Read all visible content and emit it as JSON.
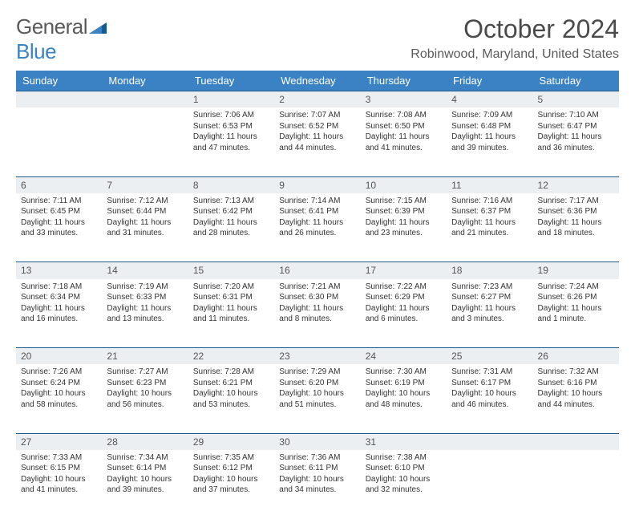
{
  "logo": {
    "text1": "General",
    "text2": "Blue"
  },
  "title": "October 2024",
  "location": "Robinwood, Maryland, United States",
  "weekdays": [
    "Sunday",
    "Monday",
    "Tuesday",
    "Wednesday",
    "Thursday",
    "Friday",
    "Saturday"
  ],
  "colors": {
    "header_bg": "#3b82c4",
    "row_border": "#1a5a8a",
    "daynum_bg": "#eceff1",
    "logo_blue": "#3b82c4"
  },
  "weeks": [
    [
      {
        "day": "",
        "sunrise": "",
        "sunset": "",
        "daylight": ""
      },
      {
        "day": "",
        "sunrise": "",
        "sunset": "",
        "daylight": ""
      },
      {
        "day": "1",
        "sunrise": "Sunrise: 7:06 AM",
        "sunset": "Sunset: 6:53 PM",
        "daylight": "Daylight: 11 hours and 47 minutes."
      },
      {
        "day": "2",
        "sunrise": "Sunrise: 7:07 AM",
        "sunset": "Sunset: 6:52 PM",
        "daylight": "Daylight: 11 hours and 44 minutes."
      },
      {
        "day": "3",
        "sunrise": "Sunrise: 7:08 AM",
        "sunset": "Sunset: 6:50 PM",
        "daylight": "Daylight: 11 hours and 41 minutes."
      },
      {
        "day": "4",
        "sunrise": "Sunrise: 7:09 AM",
        "sunset": "Sunset: 6:48 PM",
        "daylight": "Daylight: 11 hours and 39 minutes."
      },
      {
        "day": "5",
        "sunrise": "Sunrise: 7:10 AM",
        "sunset": "Sunset: 6:47 PM",
        "daylight": "Daylight: 11 hours and 36 minutes."
      }
    ],
    [
      {
        "day": "6",
        "sunrise": "Sunrise: 7:11 AM",
        "sunset": "Sunset: 6:45 PM",
        "daylight": "Daylight: 11 hours and 33 minutes."
      },
      {
        "day": "7",
        "sunrise": "Sunrise: 7:12 AM",
        "sunset": "Sunset: 6:44 PM",
        "daylight": "Daylight: 11 hours and 31 minutes."
      },
      {
        "day": "8",
        "sunrise": "Sunrise: 7:13 AM",
        "sunset": "Sunset: 6:42 PM",
        "daylight": "Daylight: 11 hours and 28 minutes."
      },
      {
        "day": "9",
        "sunrise": "Sunrise: 7:14 AM",
        "sunset": "Sunset: 6:41 PM",
        "daylight": "Daylight: 11 hours and 26 minutes."
      },
      {
        "day": "10",
        "sunrise": "Sunrise: 7:15 AM",
        "sunset": "Sunset: 6:39 PM",
        "daylight": "Daylight: 11 hours and 23 minutes."
      },
      {
        "day": "11",
        "sunrise": "Sunrise: 7:16 AM",
        "sunset": "Sunset: 6:37 PM",
        "daylight": "Daylight: 11 hours and 21 minutes."
      },
      {
        "day": "12",
        "sunrise": "Sunrise: 7:17 AM",
        "sunset": "Sunset: 6:36 PM",
        "daylight": "Daylight: 11 hours and 18 minutes."
      }
    ],
    [
      {
        "day": "13",
        "sunrise": "Sunrise: 7:18 AM",
        "sunset": "Sunset: 6:34 PM",
        "daylight": "Daylight: 11 hours and 16 minutes."
      },
      {
        "day": "14",
        "sunrise": "Sunrise: 7:19 AM",
        "sunset": "Sunset: 6:33 PM",
        "daylight": "Daylight: 11 hours and 13 minutes."
      },
      {
        "day": "15",
        "sunrise": "Sunrise: 7:20 AM",
        "sunset": "Sunset: 6:31 PM",
        "daylight": "Daylight: 11 hours and 11 minutes."
      },
      {
        "day": "16",
        "sunrise": "Sunrise: 7:21 AM",
        "sunset": "Sunset: 6:30 PM",
        "daylight": "Daylight: 11 hours and 8 minutes."
      },
      {
        "day": "17",
        "sunrise": "Sunrise: 7:22 AM",
        "sunset": "Sunset: 6:29 PM",
        "daylight": "Daylight: 11 hours and 6 minutes."
      },
      {
        "day": "18",
        "sunrise": "Sunrise: 7:23 AM",
        "sunset": "Sunset: 6:27 PM",
        "daylight": "Daylight: 11 hours and 3 minutes."
      },
      {
        "day": "19",
        "sunrise": "Sunrise: 7:24 AM",
        "sunset": "Sunset: 6:26 PM",
        "daylight": "Daylight: 11 hours and 1 minute."
      }
    ],
    [
      {
        "day": "20",
        "sunrise": "Sunrise: 7:26 AM",
        "sunset": "Sunset: 6:24 PM",
        "daylight": "Daylight: 10 hours and 58 minutes."
      },
      {
        "day": "21",
        "sunrise": "Sunrise: 7:27 AM",
        "sunset": "Sunset: 6:23 PM",
        "daylight": "Daylight: 10 hours and 56 minutes."
      },
      {
        "day": "22",
        "sunrise": "Sunrise: 7:28 AM",
        "sunset": "Sunset: 6:21 PM",
        "daylight": "Daylight: 10 hours and 53 minutes."
      },
      {
        "day": "23",
        "sunrise": "Sunrise: 7:29 AM",
        "sunset": "Sunset: 6:20 PM",
        "daylight": "Daylight: 10 hours and 51 minutes."
      },
      {
        "day": "24",
        "sunrise": "Sunrise: 7:30 AM",
        "sunset": "Sunset: 6:19 PM",
        "daylight": "Daylight: 10 hours and 48 minutes."
      },
      {
        "day": "25",
        "sunrise": "Sunrise: 7:31 AM",
        "sunset": "Sunset: 6:17 PM",
        "daylight": "Daylight: 10 hours and 46 minutes."
      },
      {
        "day": "26",
        "sunrise": "Sunrise: 7:32 AM",
        "sunset": "Sunset: 6:16 PM",
        "daylight": "Daylight: 10 hours and 44 minutes."
      }
    ],
    [
      {
        "day": "27",
        "sunrise": "Sunrise: 7:33 AM",
        "sunset": "Sunset: 6:15 PM",
        "daylight": "Daylight: 10 hours and 41 minutes."
      },
      {
        "day": "28",
        "sunrise": "Sunrise: 7:34 AM",
        "sunset": "Sunset: 6:14 PM",
        "daylight": "Daylight: 10 hours and 39 minutes."
      },
      {
        "day": "29",
        "sunrise": "Sunrise: 7:35 AM",
        "sunset": "Sunset: 6:12 PM",
        "daylight": "Daylight: 10 hours and 37 minutes."
      },
      {
        "day": "30",
        "sunrise": "Sunrise: 7:36 AM",
        "sunset": "Sunset: 6:11 PM",
        "daylight": "Daylight: 10 hours and 34 minutes."
      },
      {
        "day": "31",
        "sunrise": "Sunrise: 7:38 AM",
        "sunset": "Sunset: 6:10 PM",
        "daylight": "Daylight: 10 hours and 32 minutes."
      },
      {
        "day": "",
        "sunrise": "",
        "sunset": "",
        "daylight": ""
      },
      {
        "day": "",
        "sunrise": "",
        "sunset": "",
        "daylight": ""
      }
    ]
  ]
}
